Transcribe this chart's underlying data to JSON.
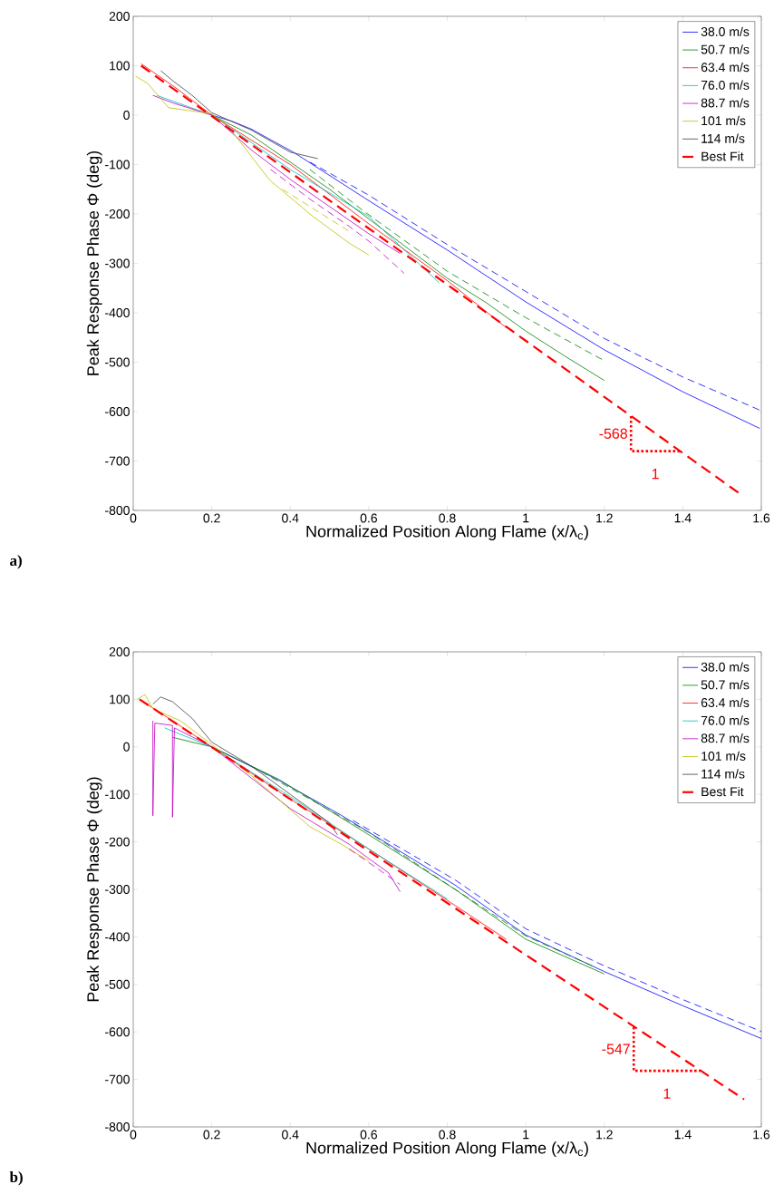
{
  "chart_data": [
    {
      "type": "line",
      "xlabel": "Normalized Position Along Flame (x/λ$_{c}$)",
      "ylabel": "Peak Response Phase Φ (deg)",
      "xlim": [
        0,
        1.6
      ],
      "ylim": [
        -800,
        200
      ],
      "xticks": [
        0,
        0.2,
        0.4,
        0.6,
        0.8,
        1,
        1.2,
        1.4,
        1.6
      ],
      "yticks": [
        -800,
        -700,
        -600,
        -500,
        -400,
        -300,
        -200,
        -100,
        0,
        100,
        200
      ],
      "legend": "top right",
      "annotations": [
        "a)",
        "-568",
        "1"
      ],
      "series": [
        {
          "name": "38.0 m/s",
          "color": "#0000ff",
          "x": [
            0.2,
            0.25,
            0.3,
            0.41,
            0.59,
            0.8,
            1.0,
            1.2,
            1.4,
            1.596
          ],
          "values": [
            0,
            -12,
            -28,
            -76,
            -168,
            -273,
            -378,
            -475,
            -560,
            -634
          ]
        },
        {
          "name": "50.7 m/s",
          "color": "#008000",
          "x": [
            0.2,
            0.3,
            0.5,
            0.7,
            0.8,
            0.9,
            1.0,
            1.1,
            1.2
          ],
          "values": [
            0,
            -40,
            -150,
            -270,
            -330,
            -380,
            -437,
            -488,
            -537
          ]
        },
        {
          "name": "63.4 m/s",
          "color": "#ff0000",
          "x": [
            0.02,
            0.1,
            0.2,
            0.4,
            0.6,
            0.8,
            0.95
          ],
          "values": [
            104,
            60,
            0,
            -100,
            -220,
            -335,
            -430
          ]
        },
        {
          "name": "76.0 m/s",
          "color": "#00bfbf",
          "x": [
            0.06,
            0.2,
            0.4,
            0.6,
            0.78
          ],
          "values": [
            40,
            0,
            -110,
            -205,
            -340
          ]
        },
        {
          "name": "88.7 m/s",
          "color": "#bf00bf",
          "x": [
            0.05,
            0.1,
            0.2,
            0.3,
            0.4,
            0.5,
            0.6,
            0.68
          ],
          "values": [
            40,
            25,
            0,
            -70,
            -130,
            -185,
            -240,
            -280
          ]
        },
        {
          "name": "101 m/s",
          "color": "#bfbf00",
          "x": [
            0.006,
            0.037,
            0.09,
            0.2,
            0.246,
            0.347,
            0.456,
            0.55,
            0.6
          ],
          "values": [
            79,
            64,
            15,
            3,
            -27,
            -131,
            -204,
            -259,
            -283
          ]
        },
        {
          "name": "114 m/s",
          "color": "#404040",
          "x": [
            0.07,
            0.1,
            0.15,
            0.2,
            0.3,
            0.4,
            0.47
          ],
          "values": [
            90,
            70,
            40,
            5,
            -30,
            -75,
            -88
          ]
        },
        {
          "name": "Best Fit",
          "color": "#ff0000",
          "line_style": "dashed",
          "x": [
            0.02,
            1.55
          ],
          "values": [
            100,
            -769
          ]
        },
        {
          "color": "#0000ff",
          "line_style": "dashed",
          "x": [
            0.45,
            0.6,
            0.8,
            1.0,
            1.2,
            1.4,
            1.596
          ],
          "values": [
            -95,
            -162,
            -262,
            -357,
            -452,
            -530,
            -597
          ]
        },
        {
          "color": "#008000",
          "line_style": "dashed",
          "x": [
            0.45,
            0.59,
            0.8,
            1.0,
            1.2
          ],
          "values": [
            -110,
            -196,
            -316,
            -410,
            -497
          ]
        },
        {
          "color": "#bf00bf",
          "line_style": "dashed",
          "x": [
            0.35,
            0.45,
            0.55,
            0.6,
            0.69
          ],
          "values": [
            -110,
            -170,
            -225,
            -255,
            -320
          ]
        },
        {
          "color": "#bfbf00",
          "line_style": "dashed",
          "x": [
            0.38,
            0.45,
            0.55
          ],
          "values": [
            -150,
            -185,
            -235
          ]
        },
        {
          "color": "#ff0000",
          "line_style": "dotted",
          "x": [
            1.268,
            1.268,
            1.392
          ],
          "values": [
            -609,
            -680,
            -680
          ]
        }
      ]
    },
    {
      "type": "line",
      "xlabel": "Normalized Position Along Flame (x/λ$_{c}$)",
      "ylabel": "Peak Response Phase Φ (deg)",
      "xlim": [
        0,
        1.6
      ],
      "ylim": [
        -800,
        200
      ],
      "xticks": [
        0,
        0.2,
        0.4,
        0.6,
        0.8,
        1,
        1.2,
        1.4,
        1.6
      ],
      "yticks": [
        -800,
        -700,
        -600,
        -500,
        -400,
        -300,
        -200,
        -100,
        0,
        100,
        200
      ],
      "legend": "top right",
      "annotations": [
        "b)",
        "-547",
        "1"
      ],
      "series": [
        {
          "name": "38.0 m/s",
          "color": "#0000ff",
          "x": [
            0.2,
            0.37,
            0.53,
            0.82,
            1.0,
            1.2,
            1.4,
            1.6
          ],
          "values": [
            0,
            -70,
            -144,
            -291,
            -396,
            -473,
            -545,
            -614
          ]
        },
        {
          "name": "50.7 m/s",
          "color": "#008000",
          "x": [
            0.1,
            0.2,
            0.37,
            0.6,
            0.82,
            1.0,
            1.2
          ],
          "values": [
            20,
            0,
            -68,
            -185,
            -300,
            -405,
            -478
          ]
        },
        {
          "name": "63.4 m/s",
          "color": "#ff0000",
          "x": [
            0.016,
            0.1,
            0.2,
            0.4,
            0.6,
            0.8,
            0.95
          ],
          "values": [
            100,
            55,
            0,
            -110,
            -215,
            -323,
            -405
          ]
        },
        {
          "name": "76.0 m/s",
          "color": "#00bfbf",
          "x": [
            0.08,
            0.2,
            0.4,
            0.6,
            0.8
          ],
          "values": [
            40,
            0,
            -105,
            -215,
            -320
          ]
        },
        {
          "name": "88.7 m/s",
          "color": "#bf00bf",
          "x": [
            0.05,
            0.05,
            0.055,
            0.1,
            0.1,
            0.105,
            0.2,
            0.4,
            0.55,
            0.65,
            0.68
          ],
          "values": [
            55,
            -145,
            50,
            45,
            -148,
            40,
            0,
            -130,
            -205,
            -265,
            -305
          ]
        },
        {
          "name": "101 m/s",
          "color": "#bfbf00",
          "x": [
            0.01,
            0.03,
            0.05,
            0.12,
            0.2,
            0.3,
            0.45,
            0.53,
            0.6
          ],
          "values": [
            100,
            110,
            80,
            55,
            5,
            -60,
            -168,
            -205,
            -240
          ]
        },
        {
          "name": "114 m/s",
          "color": "#404040",
          "x": [
            0.05,
            0.07,
            0.1,
            0.15,
            0.2,
            0.3,
            0.4,
            0.45,
            0.5,
            0.52
          ],
          "values": [
            90,
            105,
            95,
            60,
            10,
            -40,
            -100,
            -130,
            -160,
            -185
          ]
        },
        {
          "name": "Best Fit",
          "color": "#ff0000",
          "line_style": "dashed",
          "x": [
            0.016,
            1.556
          ],
          "values": [
            100,
            -742
          ]
        },
        {
          "color": "#0000ff",
          "line_style": "dashed",
          "x": [
            0.56,
            0.82,
            1.0,
            1.2,
            1.4,
            1.6
          ],
          "values": [
            -155,
            -280,
            -383,
            -461,
            -532,
            -599
          ]
        },
        {
          "color": "#008000",
          "line_style": "dashed",
          "x": [
            0.3,
            0.6,
            1.0,
            1.18
          ],
          "values": [
            -40,
            -180,
            -398,
            -465
          ]
        },
        {
          "color": "#bf00bf",
          "line_style": "dashed",
          "x": [
            0.55,
            0.62,
            0.68
          ],
          "values": [
            -215,
            -255,
            -290
          ]
        },
        {
          "color": "#ff0000",
          "line_style": "dotted",
          "x": [
            1.275,
            1.275,
            1.444
          ],
          "values": [
            -590,
            -682,
            -682
          ]
        }
      ]
    }
  ]
}
